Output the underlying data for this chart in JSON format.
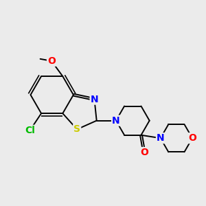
{
  "background_color": "#ebebeb",
  "bond_color": "#000000",
  "atom_colors": {
    "N": "#0000ff",
    "O": "#ff0000",
    "S": "#cccc00",
    "Cl": "#00bb00"
  },
  "figsize": [
    3.0,
    3.0
  ],
  "dpi": 100
}
